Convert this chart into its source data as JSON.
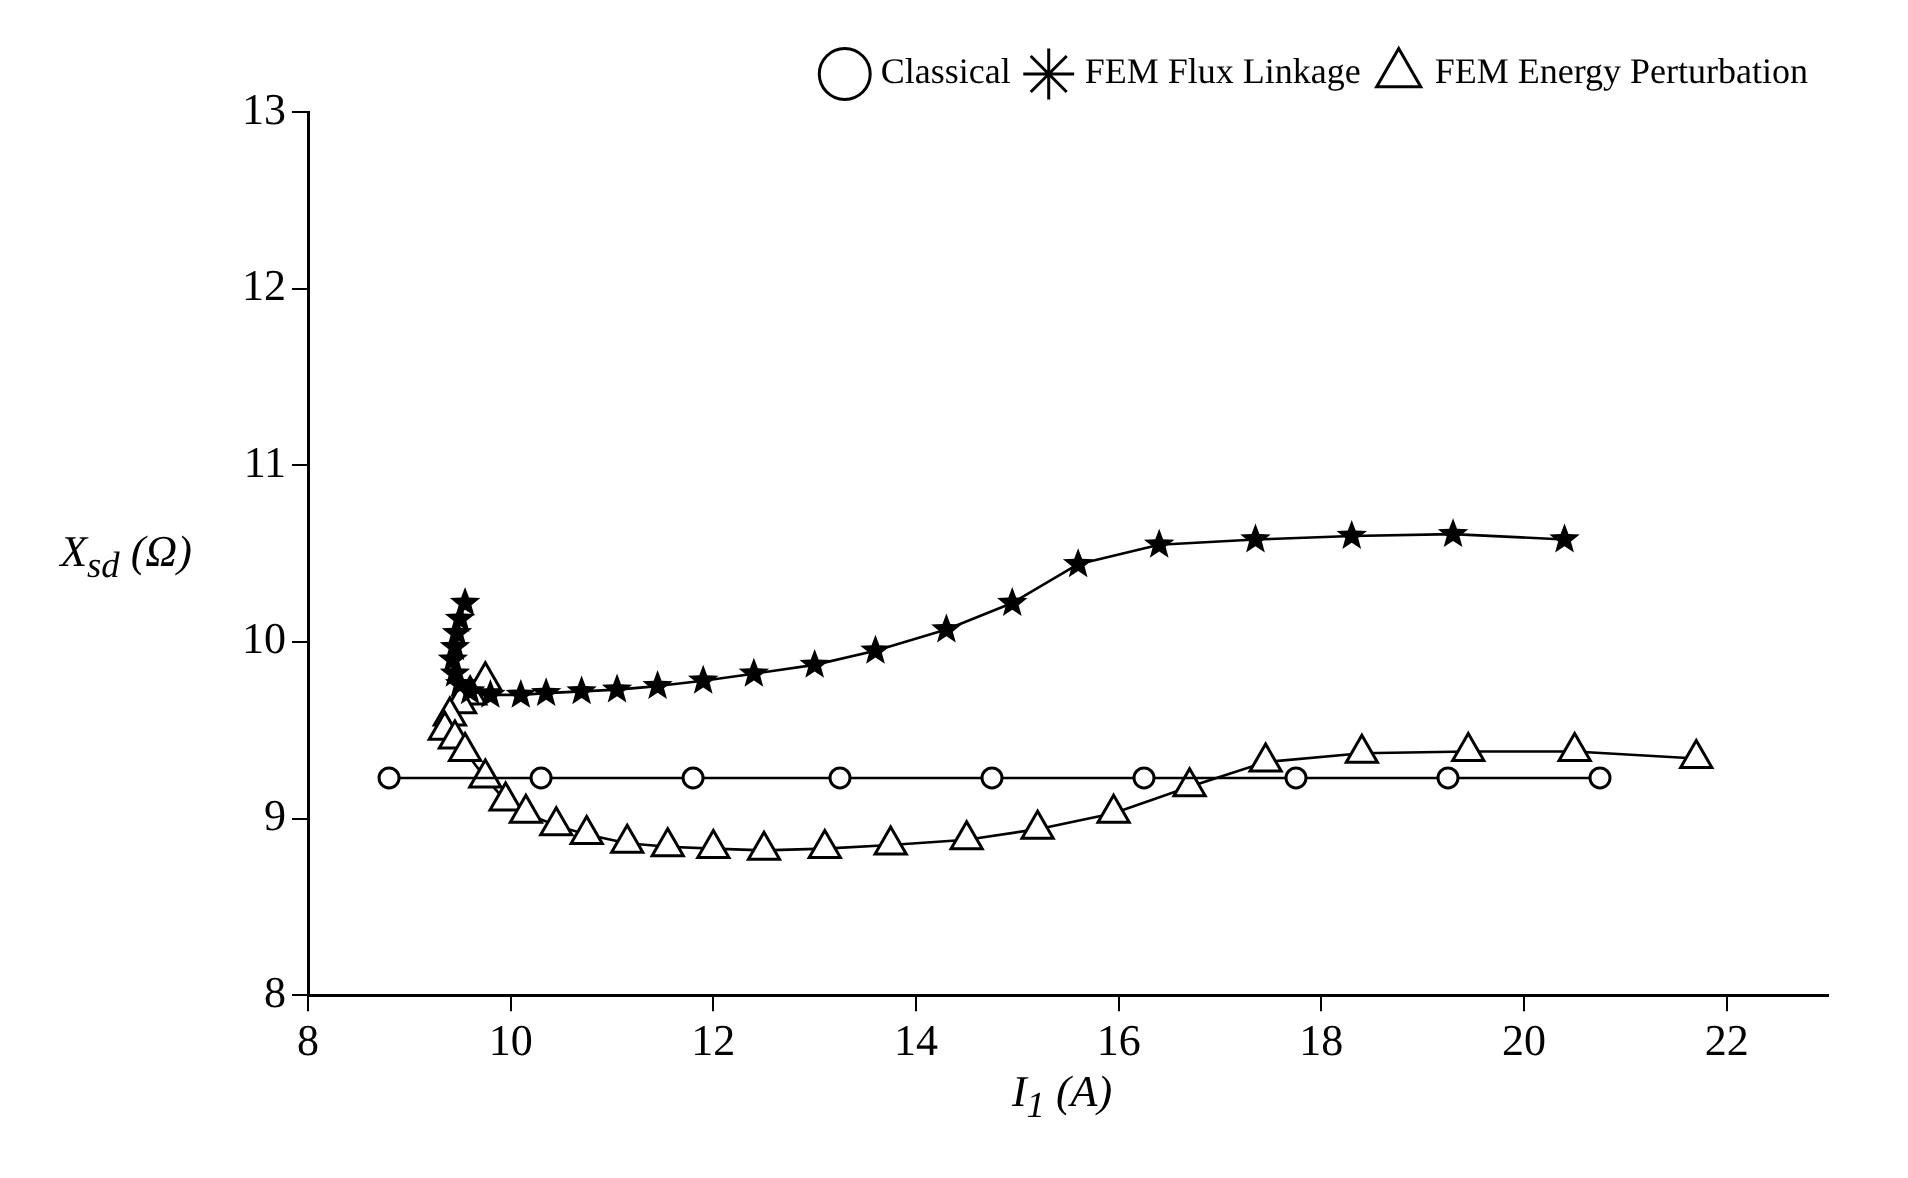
{
  "chart_data": {
    "type": "line",
    "xlabel": "I$_{1}$ (A)",
    "ylabel": "X$_{sd}$ (Ω)",
    "xlim": [
      8,
      23
    ],
    "xticks": [
      8,
      10,
      12,
      14,
      16,
      18,
      20,
      22
    ],
    "ylim": [
      8,
      13
    ],
    "yticks": [
      8,
      9,
      10,
      11,
      12,
      13
    ],
    "grid": false,
    "legend": "top right",
    "series": [
      {
        "name": "Classical",
        "color": "#000000",
        "marker": "circle",
        "x": [
          8.8,
          10.3,
          11.8,
          13.25,
          14.75,
          16.25,
          17.75,
          19.25,
          20.75
        ],
        "values": [
          9.23,
          9.23,
          9.23,
          9.23,
          9.23,
          9.23,
          9.23,
          9.23,
          9.23
        ]
      },
      {
        "name": "FEM Flux Linkage",
        "color": "#000000",
        "marker": "star",
        "x": [
          9.55,
          9.5,
          9.47,
          9.45,
          9.43,
          9.45,
          9.5,
          9.6,
          9.8,
          10.1,
          10.35,
          10.7,
          11.05,
          11.45,
          11.9,
          12.4,
          13.0,
          13.6,
          14.3,
          14.95,
          15.6,
          16.4,
          17.35,
          18.3,
          19.3,
          20.4
        ],
        "values": [
          10.22,
          10.13,
          10.05,
          9.97,
          9.9,
          9.82,
          9.76,
          9.72,
          9.7,
          9.7,
          9.71,
          9.72,
          9.73,
          9.75,
          9.78,
          9.82,
          9.87,
          9.95,
          10.07,
          10.22,
          10.44,
          10.55,
          10.58,
          10.6,
          10.61,
          10.58
        ]
      },
      {
        "name": "FEM Energy Perturbation",
        "color": "#000000",
        "marker": "triangle",
        "x": [
          9.75,
          9.6,
          9.5,
          9.4,
          9.35,
          9.45,
          9.55,
          9.75,
          9.95,
          10.15,
          10.45,
          10.75,
          11.15,
          11.55,
          12.0,
          12.5,
          13.1,
          13.75,
          14.5,
          15.2,
          15.95,
          16.7,
          17.45,
          18.4,
          19.45,
          20.5,
          21.7
        ],
        "values": [
          9.78,
          9.7,
          9.65,
          9.58,
          9.5,
          9.45,
          9.38,
          9.23,
          9.1,
          9.03,
          8.96,
          8.91,
          8.86,
          8.84,
          8.83,
          8.82,
          8.83,
          8.85,
          8.88,
          8.94,
          9.03,
          9.18,
          9.32,
          9.37,
          9.38,
          9.38,
          9.34
        ]
      }
    ]
  }
}
